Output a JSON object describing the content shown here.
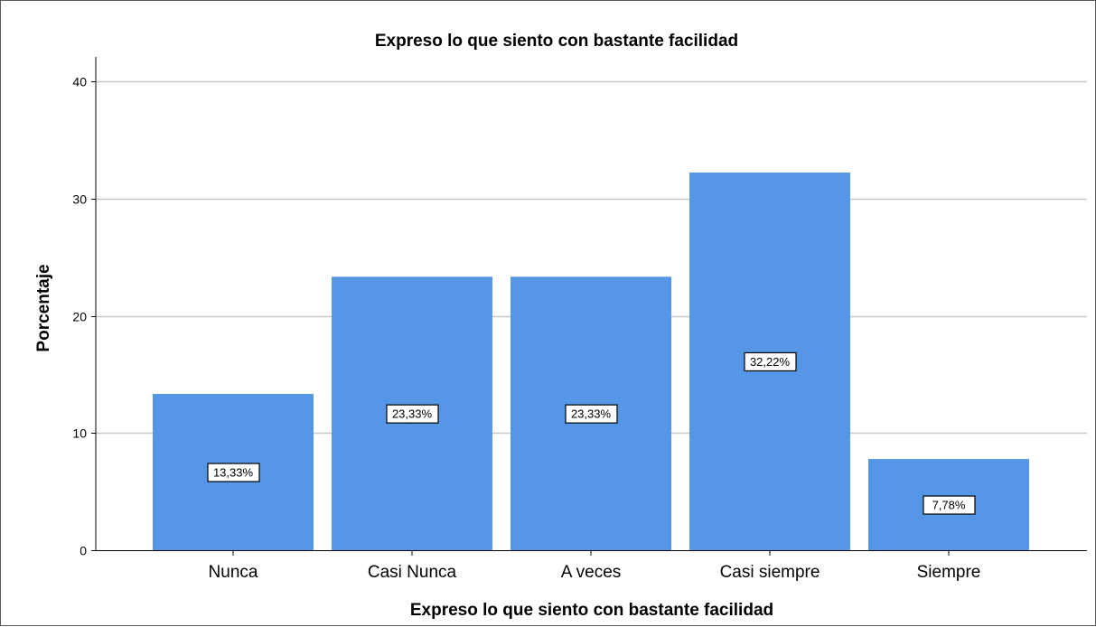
{
  "chart_data": {
    "type": "bar",
    "title": "Expreso lo que siento con bastante facilidad",
    "xlabel": "Expreso lo que siento con bastante facilidad",
    "ylabel": "Porcentaje",
    "categories": [
      "Nunca",
      "Casi Nunca",
      "A veces",
      "Casi siempre",
      "Siempre"
    ],
    "values": [
      13.33,
      23.33,
      23.33,
      32.22,
      7.78
    ],
    "data_labels": [
      "13,33%",
      "23,33%",
      "23,33%",
      "32,22%",
      "7,78%"
    ],
    "ylim": [
      0,
      40
    ],
    "yticks": [
      0,
      10,
      20,
      30,
      40
    ],
    "ytick_labels": [
      "0",
      "10",
      "20",
      "30",
      "40"
    ],
    "grid": true,
    "bar_color": "#5596e6",
    "grid_color": "#c8c8c8",
    "legend": "none"
  }
}
